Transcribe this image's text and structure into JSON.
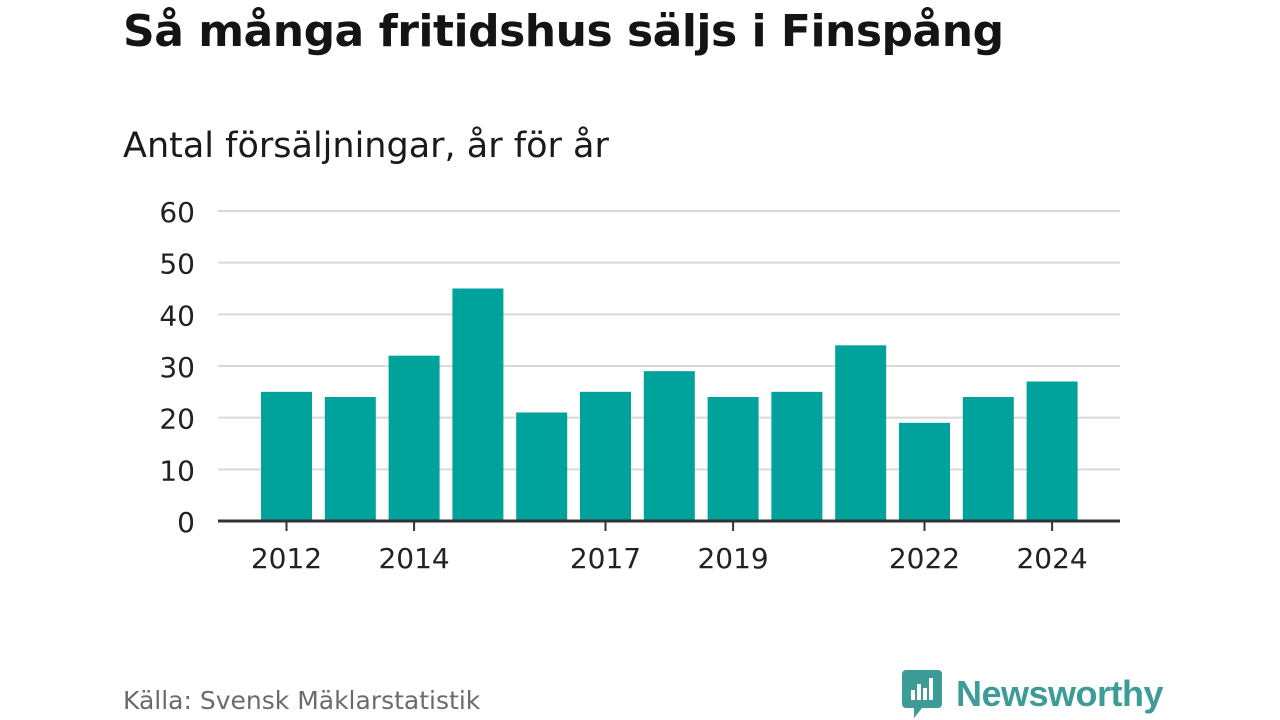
{
  "title": "Så många fritidshus säljs i Finspång",
  "subtitle": "Antal försäljningar, år för år",
  "source": "Källa: Svensk Mäklarstatistik",
  "brand": {
    "name": "Newsworthy",
    "logo_icon": "bar-chart-speech-bubble-icon",
    "color": "#3d9c97"
  },
  "chart_data": {
    "type": "bar",
    "categories": [
      "2012",
      "2013",
      "2014",
      "2015",
      "2016",
      "2017",
      "2018",
      "2019",
      "2020",
      "2021",
      "2022",
      "2023",
      "2024"
    ],
    "values": [
      25,
      24,
      32,
      45,
      21,
      25,
      29,
      24,
      25,
      34,
      19,
      24,
      27
    ],
    "x_tick_labels": [
      "2012",
      "2014",
      "2017",
      "2019",
      "2022",
      "2024"
    ],
    "y_ticks": [
      0,
      10,
      20,
      30,
      40,
      50,
      60
    ],
    "ylim": [
      0,
      60
    ],
    "grid": true,
    "bar_color": "#00a39c",
    "xlabel": "",
    "ylabel": ""
  }
}
